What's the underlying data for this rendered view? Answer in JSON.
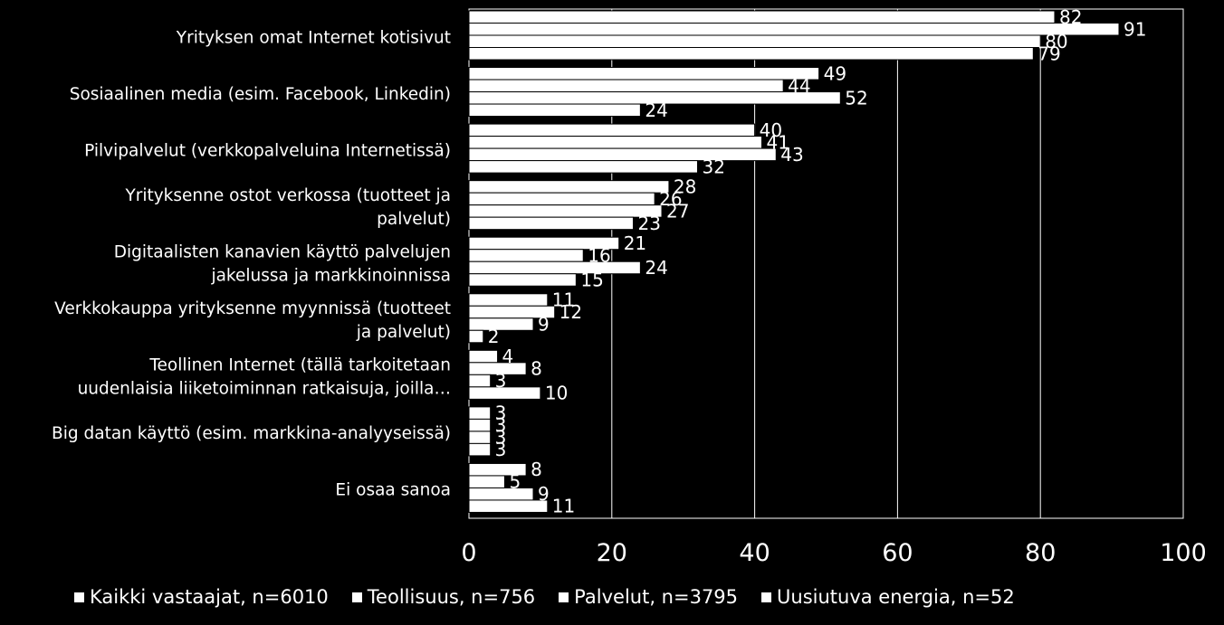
{
  "chart_data": {
    "type": "bar",
    "orientation": "horizontal",
    "categories": [
      [
        "Yrityksen omat Internet kotisivut"
      ],
      [
        "Sosiaalinen media (esim. Facebook, Linkedin)"
      ],
      [
        "Pilvipalvelut  (verkkopalveluina Internetissä)"
      ],
      [
        "Yrityksenne ostot verkossa (tuotteet ja",
        "palvelut)"
      ],
      [
        "Digitaalisten kanavien käyttö palvelujen",
        "jakelussa ja markkinoinnissa"
      ],
      [
        "Verkkokauppa yrityksenne myynnissä (tuotteet",
        "ja palvelut)"
      ],
      [
        "Teollinen Internet (tällä tarkoitetaan",
        "uudenlaisia liiketoiminnan ratkaisuja, joilla…"
      ],
      [
        "Big datan käyttö (esim. markkina-analyyseissä)"
      ],
      [
        "Ei osaa sanoa"
      ]
    ],
    "series": [
      {
        "name": "Kaikki vastaajat, n=6010",
        "values": [
          82,
          49,
          40,
          28,
          21,
          11,
          4,
          3,
          8
        ]
      },
      {
        "name": "Teollisuus, n=756",
        "values": [
          91,
          44,
          41,
          26,
          16,
          12,
          8,
          3,
          5
        ]
      },
      {
        "name": "Palvelut, n=3795",
        "values": [
          80,
          52,
          43,
          27,
          24,
          9,
          3,
          3,
          9
        ]
      },
      {
        "name": "Uusiutuva energia, n=52",
        "values": [
          79,
          24,
          32,
          23,
          15,
          2,
          10,
          3,
          11
        ]
      }
    ],
    "xlim": [
      0,
      100
    ],
    "xticks": [
      "0",
      "20",
      "40",
      "60",
      "80",
      "100"
    ],
    "grid": true,
    "legend_position": "bottom",
    "colors": {
      "background": "#000000",
      "bar": "#ffffff",
      "bar_edge": "#000000",
      "grid": "#ffffff",
      "text": "#ffffff"
    }
  }
}
